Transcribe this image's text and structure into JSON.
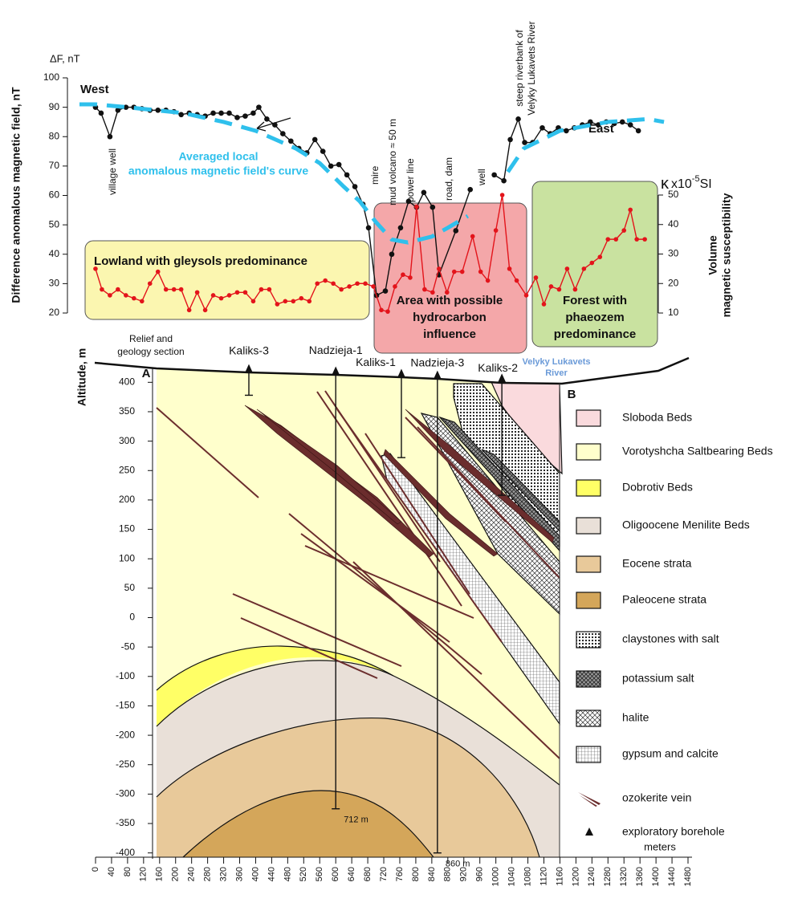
{
  "chart_data": [
    {
      "type": "line",
      "y_unit_label": "ΔF, nT",
      "y_label": "Difference anomalous magnetic field, nT",
      "y2_unit_label": [
        "κ",
        "x10",
        "-5",
        "SI"
      ],
      "y2_label": [
        "Volume",
        "magnetic susceptibility"
      ],
      "xlim": [
        -40,
        1480
      ],
      "ylim": [
        20,
        100
      ],
      "yticks": [
        20,
        30,
        40,
        50,
        60,
        70,
        80,
        90,
        100
      ],
      "y2lim": [
        10,
        50
      ],
      "y2ticks": [
        10,
        20,
        30,
        40,
        50
      ],
      "regions": [
        {
          "label": [
            "Lowland with gleysols predominance"
          ],
          "color": "#fbf6b0"
        },
        {
          "label": [
            "Area with possible",
            "hydrocarbon",
            "influence"
          ],
          "color": "#f4a7a9"
        },
        {
          "label": [
            "Forest with",
            "phaeozem",
            "predominance"
          ],
          "color": "#c9e2a0"
        }
      ],
      "annotations": [
        [
          "West"
        ],
        [
          "East"
        ],
        [
          "village well"
        ],
        [
          "mire"
        ],
        [
          "mud volcano ≈ 50 m"
        ],
        [
          "power line"
        ],
        [
          "road, dam"
        ],
        [
          "well"
        ],
        [
          "steep riverbank of",
          "Velyky Lukavets River"
        ]
      ],
      "series": [
        {
          "color": "#111111",
          "markers": true,
          "dashed": false,
          "x": [
            0,
            14,
            36,
            56,
            76,
            96,
            116,
            136,
            156,
            176,
            196,
            214,
            234,
            254,
            274,
            294,
            314,
            334,
            354,
            374,
            394,
            408,
            428,
            448,
            468,
            488,
            508,
            528,
            548,
            568,
            588,
            608,
            628,
            648,
            668,
            682,
            702,
            724,
            740,
            762,
            782,
            802,
            820,
            842,
            858,
            900,
            936,
            966,
            996,
            1020,
            1036,
            1056,
            1072,
            1092,
            1116,
            1136,
            1156,
            1176,
            1196,
            1216,
            1236,
            1256,
            1276,
            1296,
            1316,
            1336,
            1356
          ],
          "values": [
            90,
            88,
            80,
            89,
            90,
            90,
            89.5,
            89,
            89,
            89,
            88.5,
            87.5,
            88,
            87.5,
            87,
            88,
            88,
            88,
            86.5,
            87,
            88,
            90,
            86,
            84,
            81,
            78.5,
            76,
            74.5,
            79,
            75,
            70,
            70.5,
            67,
            63,
            57,
            49,
            26,
            27.5,
            40,
            49,
            58,
            56,
            61,
            56,
            33,
            48,
            62,
            null,
            67,
            65,
            79,
            86,
            78,
            78,
            83,
            81,
            83,
            82,
            83,
            84,
            85,
            84,
            85,
            84.5,
            85,
            84,
            82
          ]
        },
        {
          "color": "#e3141b",
          "markers": true,
          "dashed": false,
          "axis": "y2",
          "x": [
            0,
            16,
            36,
            56,
            76,
            96,
            116,
            136,
            156,
            176,
            196,
            214,
            234,
            254,
            274,
            294,
            314,
            334,
            354,
            374,
            394,
            414,
            434,
            454,
            474,
            494,
            514,
            534,
            554,
            574,
            594,
            614,
            634,
            654,
            674,
            694,
            714,
            730,
            748,
            768,
            786,
            802,
            822,
            842,
            858,
            878,
            896,
            916,
            942,
            962,
            980,
            1000,
            1016,
            1034,
            1052,
            1076,
            1100,
            1120,
            1138,
            1158,
            1178,
            1198,
            1220,
            1240,
            1260,
            1280,
            1300,
            1320,
            1336,
            1352,
            1372
          ],
          "values": [
            25,
            18,
            16,
            18,
            16,
            15,
            14,
            20,
            24,
            18,
            18,
            18,
            11,
            17,
            11,
            16,
            15,
            16,
            17,
            17,
            14,
            18,
            18,
            13,
            14,
            14,
            15,
            14,
            20,
            21,
            20,
            18,
            19,
            20,
            20,
            19,
            11,
            10.5,
            19,
            23,
            22,
            46,
            18,
            17,
            25,
            17,
            24,
            24,
            36,
            24,
            21,
            38,
            50,
            25,
            21,
            16,
            22,
            13,
            19,
            18,
            25,
            18,
            25,
            27,
            29,
            35,
            35,
            38,
            45,
            35,
            35
          ]
        },
        {
          "name": [
            "Averaged local",
            "anomalous magnetic field's curve"
          ],
          "color": "#2fc0ec",
          "markers": false,
          "dashed": true,
          "x": [
            -40,
            0,
            80,
            220,
            320,
            400,
            500,
            560,
            620,
            660,
            700,
            740,
            780,
            840,
            880,
            930,
            980,
            1030,
            1070,
            1160,
            1280,
            1380,
            1420
          ],
          "values": [
            91,
            91,
            90,
            88,
            85,
            82,
            76,
            71,
            63,
            58,
            51,
            45,
            44,
            46,
            49,
            53,
            null,
            68,
            76,
            82,
            85,
            86,
            85
          ]
        }
      ]
    },
    {
      "type": "section",
      "title": [
        "Relief and",
        "geology section"
      ],
      "y_label": "Altitude, m",
      "x_label": "meters",
      "left_end_label": "A",
      "right_end_label": "B",
      "river_label": [
        "Velyky Lukavets",
        "River"
      ],
      "xlim": [
        0,
        1490
      ],
      "xticks": [
        0,
        40,
        80,
        120,
        160,
        200,
        240,
        280,
        320,
        360,
        400,
        440,
        480,
        520,
        560,
        600,
        640,
        680,
        720,
        760,
        800,
        840,
        880,
        920,
        960,
        1000,
        1040,
        1080,
        1120,
        1160,
        1200,
        1240,
        1280,
        1320,
        1360,
        1400,
        1440,
        1480
      ],
      "ylim": [
        -410,
        425
      ],
      "yticks": [
        -400,
        -350,
        -300,
        -250,
        -200,
        -150,
        -100,
        -50,
        0,
        50,
        100,
        150,
        200,
        250,
        300,
        350,
        400
      ],
      "boreholes": [
        {
          "name": "Kaliks-3",
          "x": 383,
          "top": 416,
          "bottom": 378
        },
        {
          "name": "Nadzieja-1",
          "x": 600,
          "top": 412,
          "bottom": -325,
          "depth_label": "712 m"
        },
        {
          "name": "Kaliks-1",
          "x": 764,
          "top": 408,
          "bottom": 272
        },
        {
          "name": "Nadzieja-3",
          "x": 854,
          "top": 405,
          "bottom": -400,
          "depth_label": "860 m"
        },
        {
          "name": "Kaliks-2",
          "x": 1015,
          "top": 400,
          "bottom": 208
        }
      ],
      "legend": [
        {
          "label": "Sloboda Beds",
          "color": "#fadadd"
        },
        {
          "label": "Vorotyshcha Saltbearing Beds",
          "color": "#ffffcc"
        },
        {
          "label": "Dobrotiv Beds",
          "color": "#ffff66"
        },
        {
          "label": "Oligoocene Menilite Beds",
          "color": "#e9e0d8"
        },
        {
          "label": "Eocene strata",
          "color": "#e8c99a"
        },
        {
          "label": "Paleocene strata",
          "color": "#d4a65a"
        },
        {
          "label": "claystones with salt",
          "pattern": "dots"
        },
        {
          "label": "potassium salt",
          "pattern": "cross-dark"
        },
        {
          "label": "halite",
          "pattern": "cross"
        },
        {
          "label": "gypsum and calcite",
          "pattern": "grid"
        },
        {
          "label": "ozokerite vein",
          "symbol": "vein"
        },
        {
          "label": "exploratory borehole",
          "symbol": "triangle"
        }
      ]
    }
  ]
}
